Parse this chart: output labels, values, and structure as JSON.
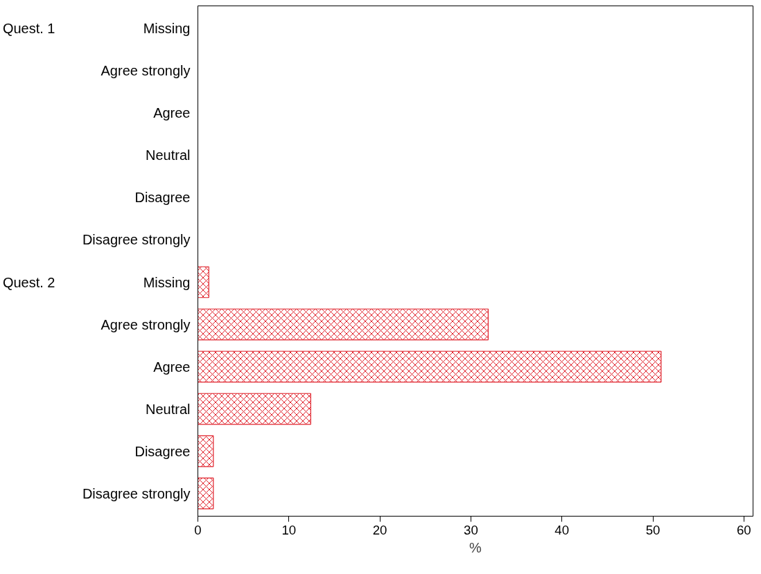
{
  "chart_data": {
    "type": "bar",
    "orientation": "horizontal",
    "xlabel": "%",
    "categories": [
      "Missing",
      "Agree strongly",
      "Agree",
      "Neutral",
      "Disagree",
      "Disagree strongly",
      "Missing",
      "Agree strongly",
      "Agree",
      "Neutral",
      "Disagree",
      "Disagree strongly"
    ],
    "values": [
      null,
      null,
      null,
      null,
      null,
      null,
      1.2,
      31.9,
      50.9,
      12.4,
      1.7,
      1.7
    ],
    "color": "#e0202a",
    "xlim": [
      0,
      61
    ],
    "xticks": [
      0,
      10,
      20,
      30,
      40,
      50,
      60
    ],
    "grid": false,
    "annotations": [
      "Quest. 1",
      "Quest. 2"
    ]
  }
}
